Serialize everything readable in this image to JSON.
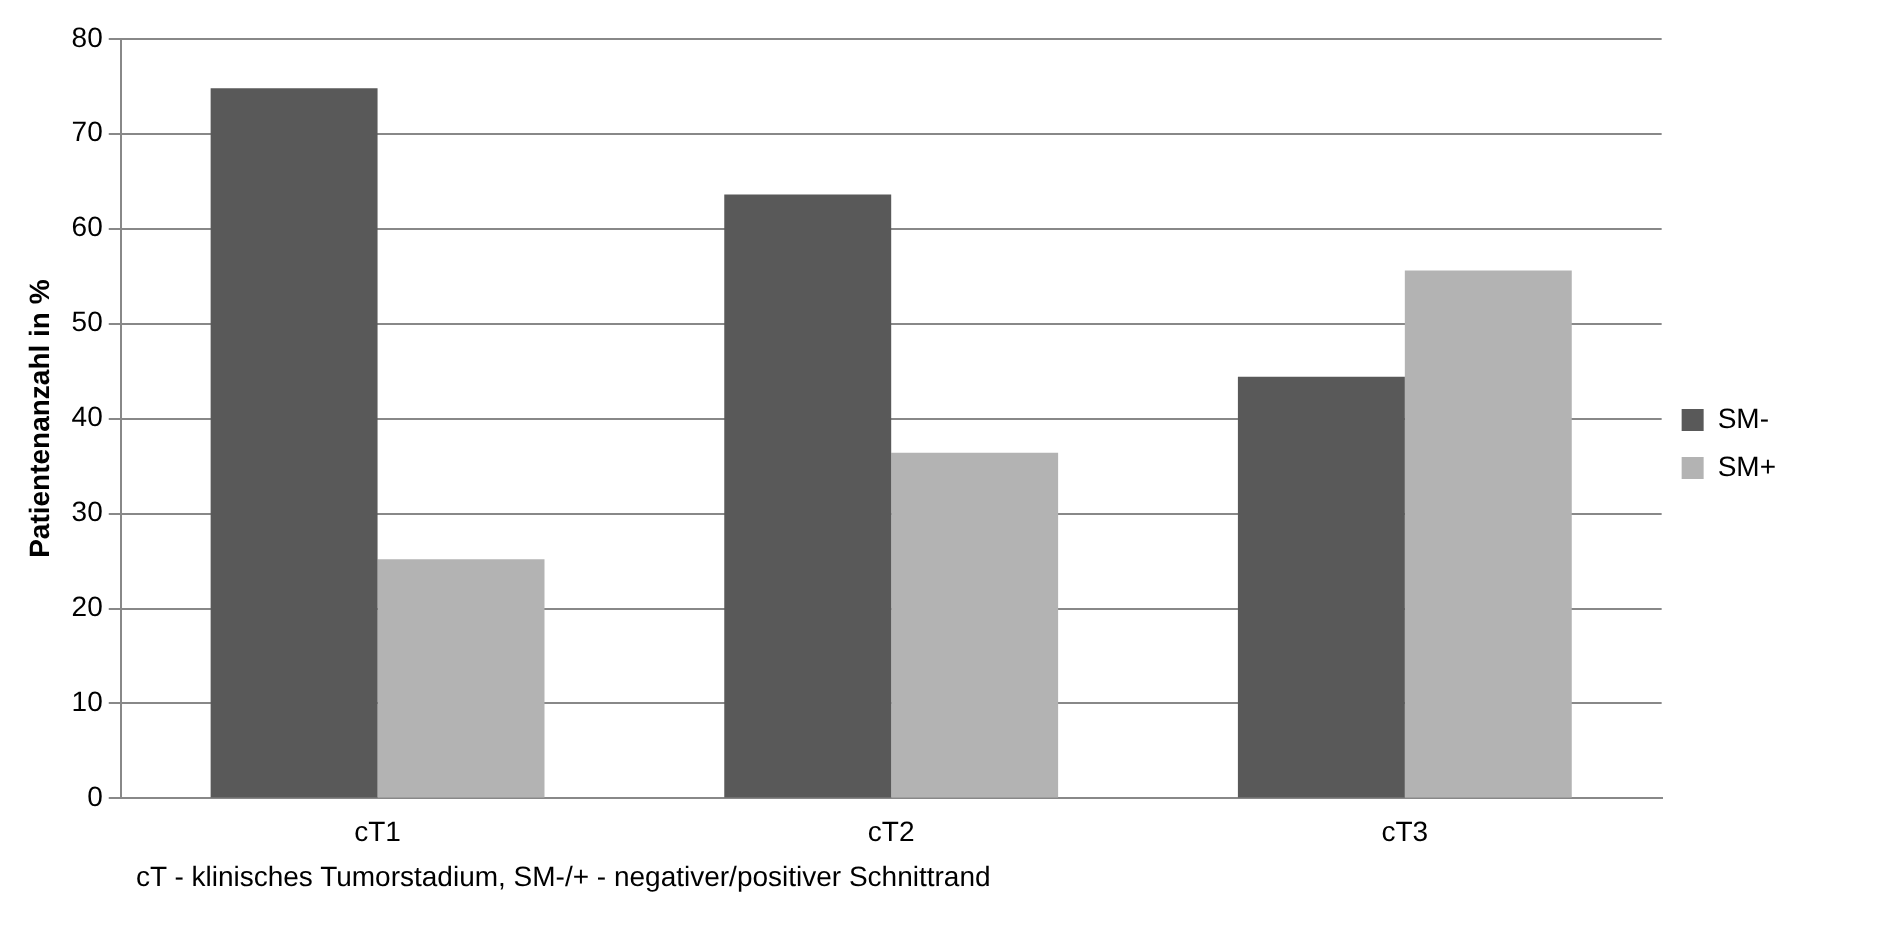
{
  "chart_data": {
    "type": "bar",
    "ylabel": "Patientenanzahl in %",
    "categories": [
      "cT1",
      "cT2",
      "cT3"
    ],
    "series": [
      {
        "name": "SM-",
        "color": "#595959",
        "values": [
          74.8,
          63.6,
          44.4
        ]
      },
      {
        "name": "SM+",
        "color": "#b3b3b3",
        "values": [
          25.2,
          36.4,
          55.6
        ]
      }
    ],
    "ylim": [
      0,
      80
    ],
    "yticks": [
      0,
      10,
      20,
      30,
      40,
      50,
      60,
      70,
      80
    ],
    "grid": "y",
    "legend": "right",
    "annotations": [
      "cT - klinisches Tumorstadium, SM-/+ - negativer/positiver Schnittrand"
    ]
  }
}
